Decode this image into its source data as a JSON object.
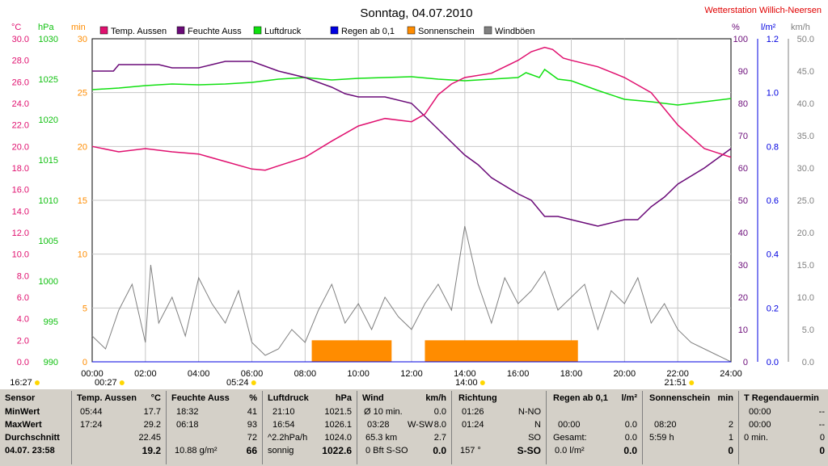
{
  "title": "Sonntag, 04.07.2010",
  "station": "Wetterstation Willich-Neersen",
  "colors": {
    "temp": "#e0106f",
    "hum": "#6a0a78",
    "press": "#10e010",
    "rain": "#0000e0",
    "sun": "#ff8c00",
    "gust": "#808080"
  },
  "legend": [
    {
      "label": "Temp. Aussen",
      "color": "#e0106f"
    },
    {
      "label": "Feuchte Auss",
      "color": "#6a0a78"
    },
    {
      "label": "Luftdruck",
      "color": "#10e010"
    },
    {
      "label": "Regen ab 0,1",
      "color": "#0000e0"
    },
    {
      "label": "Sonnenschein",
      "color": "#ff8c00"
    },
    {
      "label": "Windböen",
      "color": "#808080"
    }
  ],
  "axes": {
    "temp_unit": "°C",
    "press_unit": "hPa",
    "sun_unit": "min",
    "hum_unit": "%",
    "rain_unit": "l/m²",
    "wind_unit": "km/h",
    "temp_ticks": [
      "30.0",
      "28.0",
      "26.0",
      "24.0",
      "22.0",
      "20.0",
      "18.0",
      "16.0",
      "14.0",
      "12.0",
      "10.0",
      "8.0",
      "6.0",
      "4.0",
      "2.0",
      "0.0"
    ],
    "press_ticks": [
      "1030",
      "1025",
      "1020",
      "1015",
      "1010",
      "1005",
      "1000",
      "995",
      "990"
    ],
    "sun_ticks": [
      "30",
      "25",
      "20",
      "15",
      "10",
      "5",
      "0"
    ],
    "hum_ticks": [
      "100",
      "90",
      "80",
      "70",
      "60",
      "50",
      "40",
      "30",
      "20",
      "10",
      "0"
    ],
    "rain_ticks": [
      "1.2",
      "1.0",
      "0.8",
      "0.6",
      "0.4",
      "0.2",
      "0.0"
    ],
    "wind_ticks": [
      "50.0",
      "45.0",
      "40.0",
      "35.0",
      "30.0",
      "25.0",
      "20.0",
      "15.0",
      "10.0",
      "5.0",
      "0.0"
    ],
    "x_ticks": [
      "00:00",
      "02:00",
      "04:00",
      "06:00",
      "08:00",
      "10:00",
      "12:00",
      "14:00",
      "16:00",
      "18:00",
      "20:00",
      "22:00",
      "24:00"
    ],
    "events": [
      {
        "label": "16:27",
        "hour": -3.55
      },
      {
        "label": "00:27",
        "hour": 0.45
      },
      {
        "label": "05:24",
        "hour": 5.4
      },
      {
        "label": "14:00",
        "hour": 14.0
      },
      {
        "label": "21:51",
        "hour": 21.85
      }
    ]
  },
  "chart_data": {
    "type": "line",
    "title": "Sonntag, 04.07.2010",
    "x_unit": "hour",
    "xlim": [
      0,
      24
    ],
    "series": [
      {
        "name": "Temp. Aussen",
        "unit": "°C",
        "ylim": [
          0,
          30
        ],
        "x": [
          0,
          1,
          2,
          3,
          4,
          5,
          6,
          6.5,
          7,
          8,
          9,
          10,
          11,
          12,
          12.5,
          13,
          13.5,
          14,
          15,
          16,
          16.5,
          17,
          17.3,
          17.7,
          18,
          19,
          20,
          21,
          22,
          23,
          24
        ],
        "y": [
          20.0,
          19.5,
          19.8,
          19.5,
          19.3,
          18.6,
          17.9,
          17.8,
          18.2,
          19.0,
          20.5,
          21.9,
          22.6,
          22.3,
          23.0,
          24.8,
          25.8,
          26.4,
          26.8,
          28.0,
          28.8,
          29.2,
          29.0,
          28.2,
          28.0,
          27.4,
          26.4,
          25.0,
          22.0,
          19.8,
          19.0
        ]
      },
      {
        "name": "Feuchte Auss",
        "unit": "%",
        "ylim": [
          0,
          100
        ],
        "x": [
          0,
          0.8,
          1,
          2.5,
          3,
          4,
          4.5,
          5,
          6,
          7,
          8,
          9,
          9.5,
          10,
          11,
          12,
          13,
          14,
          14.5,
          15,
          16,
          16.5,
          17,
          17.5,
          18,
          18.5,
          19,
          20,
          20.5,
          21,
          21.5,
          22,
          23,
          24
        ],
        "y": [
          90,
          90,
          92,
          92,
          91,
          91,
          92,
          93,
          93,
          90,
          88,
          85,
          83,
          82,
          82,
          80,
          72,
          64,
          61,
          57,
          52,
          50,
          45,
          45,
          44,
          43,
          42,
          44,
          44,
          48,
          51,
          55,
          60,
          66
        ]
      },
      {
        "name": "Luftdruck",
        "unit": "hPa",
        "ylim": [
          990,
          1030
        ],
        "x": [
          0,
          1,
          2,
          3,
          4,
          5,
          6,
          7,
          8,
          9,
          10,
          11,
          12,
          13,
          14,
          15,
          16,
          16.3,
          16.8,
          17,
          17.5,
          18,
          19,
          20,
          21,
          22,
          23,
          24
        ],
        "y": [
          1023.7,
          1023.9,
          1024.2,
          1024.4,
          1024.3,
          1024.4,
          1024.6,
          1025.0,
          1025.2,
          1024.9,
          1025.1,
          1025.2,
          1025.3,
          1025.0,
          1024.8,
          1025.0,
          1025.2,
          1025.8,
          1025.2,
          1026.2,
          1025.0,
          1024.8,
          1023.6,
          1022.5,
          1022.2,
          1021.8,
          1022.2,
          1022.6
        ]
      },
      {
        "name": "Regen ab 0,1",
        "unit": "l/m²",
        "ylim": [
          0,
          1.2
        ],
        "x": [
          0,
          24
        ],
        "y": [
          0,
          0
        ]
      },
      {
        "name": "Sonnenschein",
        "unit": "min",
        "ylim": [
          0,
          30
        ],
        "intervals": [
          [
            8.25,
            11.25
          ],
          [
            12.5,
            18.25
          ]
        ],
        "value": 2
      },
      {
        "name": "Windböen",
        "unit": "km/h",
        "ylim": [
          0,
          50
        ],
        "x": [
          0,
          0.5,
          1,
          1.5,
          2,
          2.2,
          2.5,
          3,
          3.5,
          4,
          4.5,
          5,
          5.5,
          6,
          6.5,
          7,
          7.5,
          8,
          8.5,
          9,
          9.5,
          10,
          10.5,
          11,
          11.5,
          12,
          12.5,
          13,
          13.5,
          14,
          14.5,
          15,
          15.5,
          16,
          16.5,
          17,
          17.5,
          18,
          18.5,
          19,
          19.5,
          20,
          20.5,
          21,
          21.5,
          22,
          22.5,
          23,
          23.5,
          24
        ],
        "y": [
          4,
          2,
          8,
          12,
          3,
          15,
          6,
          10,
          4,
          13,
          9,
          6,
          11,
          3,
          1,
          2,
          5,
          3,
          8,
          12,
          6,
          9,
          5,
          10,
          7,
          5,
          9,
          12,
          8,
          21,
          12,
          6,
          13,
          9,
          11,
          14,
          8,
          10,
          12,
          5,
          11,
          9,
          13,
          6,
          9,
          5,
          3,
          2,
          1,
          0
        ]
      }
    ]
  },
  "table": {
    "col0": {
      "header": "Sensor",
      "rows": [
        "MinWert",
        "MaxWert",
        "Durchschnitt",
        "04.07. 23:58"
      ]
    },
    "temp": {
      "header": "Temp. Aussen",
      "unit": "°C",
      "r1a": "05:44",
      "r1b": "17.7",
      "r2a": "17:24",
      "r2b": "29.2",
      "r3b": "22.45",
      "r4b": "19.2"
    },
    "hum": {
      "header": "Feuchte Auss",
      "unit": "%",
      "r1a": "18:32",
      "r1b": "41",
      "r2a": "06:18",
      "r2b": "93",
      "r3b": "72",
      "r4a": "10.88 g/m²",
      "r4b": "66"
    },
    "press": {
      "header": "Luftdruck",
      "unit": "hPa",
      "r1a": "21:10",
      "r1b": "1021.5",
      "r2a": "16:54",
      "r2b": "1026.1",
      "r3a": "^2.2hPa/h",
      "r3b": "1024.0",
      "r4a": "sonnig",
      "r4b": "1022.6"
    },
    "wind": {
      "header": "Wind",
      "unit": "km/h",
      "r1a": "Ø 10 min.",
      "r1b": "0.0",
      "r2a": "03:28",
      "r2m": "W-SW",
      "r2b": "8.0",
      "r3a": "65.3 km",
      "r3b": "2.7",
      "r4a": "0 Bft S-SO",
      "r4b": "0.0"
    },
    "dir": {
      "header": "Richtung",
      "r1a": "01:26",
      "r1b": "N-NO",
      "r2a": "01:24",
      "r2b": "N",
      "r3b": "SO",
      "r4a": "157 °",
      "r4b": "S-SO"
    },
    "rain": {
      "header": "Regen ab 0,1",
      "unit": "l/m²",
      "r2a": "00:00",
      "r2b": "0.0",
      "r3a": "Gesamt:",
      "r3b": "0.0",
      "r4a": "0.0 l/m²",
      "r4b": "0.0"
    },
    "sun": {
      "header": "Sonnenschein",
      "unit": "min",
      "r2a": "08:20",
      "r2b": "2",
      "r3a": "5:59 h",
      "r3b": "1",
      "r4b": "0"
    },
    "raindur": {
      "header": "T Regendauermin",
      "r1a": "00:00",
      "r1b": "--",
      "r2a": "00:00",
      "r2b": "--",
      "r3a": "0 min.",
      "r3b": "0",
      "r4b": "0"
    }
  }
}
